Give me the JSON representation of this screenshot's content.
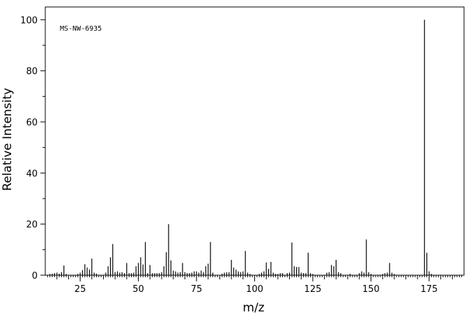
{
  "chart_data": {
    "type": "bar",
    "annotation": "MS-NW-6935",
    "xlabel": "m/z",
    "ylabel": "Relative Intensity",
    "xlim": [
      10,
      190
    ],
    "ylim": [
      0,
      105
    ],
    "x_ticks": [
      25,
      50,
      75,
      100,
      125,
      150,
      175
    ],
    "y_ticks": [
      0,
      20,
      40,
      60,
      80,
      100
    ],
    "grid": false,
    "peaks": [
      [
        12,
        0.5
      ],
      [
        13,
        0.6
      ],
      [
        14,
        0.8
      ],
      [
        15,
        1.0
      ],
      [
        16,
        0.6
      ],
      [
        17,
        1.2
      ],
      [
        18,
        3.8
      ],
      [
        19,
        0.5
      ],
      [
        24,
        0.5
      ],
      [
        25,
        1.0
      ],
      [
        26,
        2.0
      ],
      [
        27,
        4.3
      ],
      [
        28,
        3.0
      ],
      [
        29,
        2.2
      ],
      [
        30,
        6.5
      ],
      [
        31,
        1.0
      ],
      [
        32,
        0.6
      ],
      [
        36,
        1.0
      ],
      [
        37,
        3.5
      ],
      [
        38,
        7.0
      ],
      [
        39,
        12.2
      ],
      [
        40,
        1.2
      ],
      [
        41,
        1.5
      ],
      [
        42,
        1.0
      ],
      [
        43,
        1.2
      ],
      [
        44,
        0.8
      ],
      [
        45,
        4.8
      ],
      [
        46,
        0.8
      ],
      [
        47,
        0.8
      ],
      [
        48,
        1.0
      ],
      [
        49,
        3.5
      ],
      [
        50,
        4.8
      ],
      [
        51,
        7.0
      ],
      [
        52,
        4.2
      ],
      [
        53,
        13.0
      ],
      [
        54,
        0.8
      ],
      [
        55,
        4.0
      ],
      [
        56,
        0.8
      ],
      [
        57,
        0.8
      ],
      [
        58,
        0.8
      ],
      [
        59,
        0.8
      ],
      [
        60,
        1.2
      ],
      [
        61,
        3.5
      ],
      [
        62,
        9.0
      ],
      [
        63,
        20.0
      ],
      [
        64,
        5.8
      ],
      [
        65,
        1.8
      ],
      [
        66,
        1.5
      ],
      [
        67,
        1.0
      ],
      [
        68,
        1.2
      ],
      [
        69,
        4.8
      ],
      [
        70,
        1.2
      ],
      [
        71,
        0.8
      ],
      [
        72,
        0.8
      ],
      [
        73,
        1.0
      ],
      [
        74,
        1.5
      ],
      [
        75,
        1.5
      ],
      [
        76,
        1.0
      ],
      [
        77,
        1.8
      ],
      [
        78,
        1.2
      ],
      [
        79,
        3.5
      ],
      [
        80,
        4.5
      ],
      [
        81,
        13.0
      ],
      [
        82,
        1.0
      ],
      [
        86,
        0.6
      ],
      [
        87,
        1.0
      ],
      [
        88,
        1.2
      ],
      [
        89,
        1.2
      ],
      [
        90,
        6.0
      ],
      [
        91,
        3.0
      ],
      [
        92,
        2.2
      ],
      [
        93,
        1.5
      ],
      [
        94,
        1.2
      ],
      [
        95,
        1.5
      ],
      [
        96,
        9.5
      ],
      [
        97,
        1.0
      ],
      [
        98,
        0.5
      ],
      [
        102,
        0.5
      ],
      [
        103,
        1.0
      ],
      [
        104,
        1.5
      ],
      [
        105,
        5.0
      ],
      [
        106,
        2.5
      ],
      [
        107,
        5.2
      ],
      [
        108,
        1.0
      ],
      [
        109,
        0.5
      ],
      [
        110,
        0.5
      ],
      [
        111,
        0.8
      ],
      [
        112,
        0.8
      ],
      [
        114,
        0.8
      ],
      [
        115,
        1.0
      ],
      [
        116,
        12.8
      ],
      [
        117,
        3.5
      ],
      [
        118,
        3.2
      ],
      [
        119,
        3.2
      ],
      [
        120,
        1.0
      ],
      [
        121,
        0.8
      ],
      [
        122,
        0.8
      ],
      [
        123,
        8.8
      ],
      [
        124,
        0.8
      ],
      [
        125,
        0.5
      ],
      [
        131,
        1.0
      ],
      [
        132,
        1.2
      ],
      [
        133,
        4.0
      ],
      [
        134,
        3.5
      ],
      [
        135,
        6.0
      ],
      [
        136,
        1.2
      ],
      [
        137,
        0.8
      ],
      [
        141,
        0.5
      ],
      [
        145,
        0.8
      ],
      [
        146,
        1.5
      ],
      [
        147,
        1.0
      ],
      [
        148,
        14.0
      ],
      [
        149,
        1.2
      ],
      [
        150,
        0.5
      ],
      [
        155,
        0.5
      ],
      [
        156,
        0.8
      ],
      [
        157,
        1.0
      ],
      [
        158,
        4.8
      ],
      [
        159,
        1.0
      ],
      [
        160,
        0.5
      ],
      [
        173,
        100
      ],
      [
        174,
        8.8
      ],
      [
        175,
        1.5
      ],
      [
        176,
        0.5
      ]
    ]
  }
}
